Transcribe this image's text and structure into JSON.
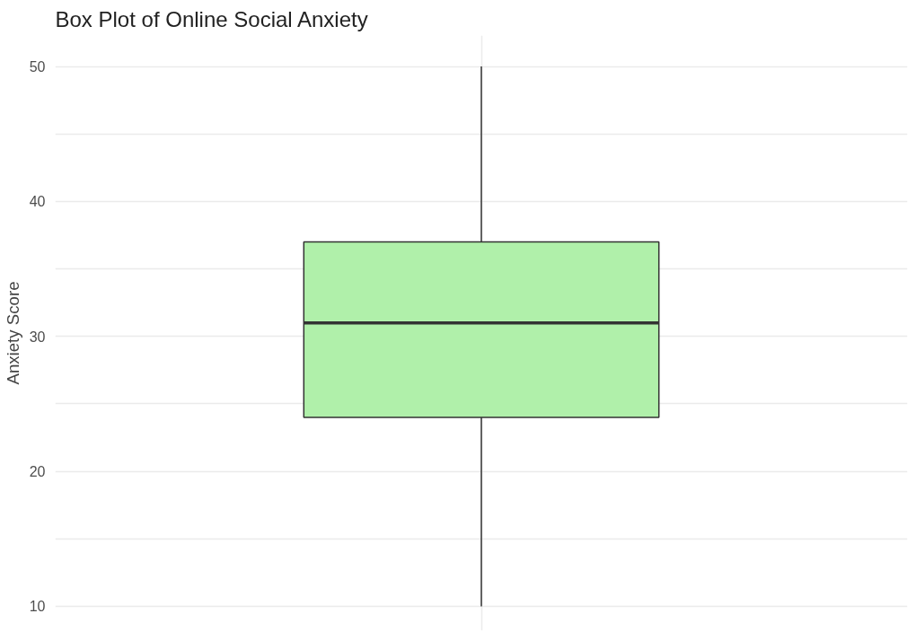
{
  "chart_data": {
    "type": "box",
    "title": "Box Plot of Online Social Anxiety",
    "ylabel": "Anxiety Score",
    "categories": [
      null
    ],
    "series": [
      {
        "color": "#b0f0aa",
        "boxes": [
          {
            "low": 10,
            "q1": 24,
            "median": 31,
            "q3": 37,
            "high": 50
          }
        ]
      }
    ],
    "ylim": [
      8.2,
      52.3
    ],
    "yticks": [
      10,
      {
        "value": 15,
        "label": null
      },
      20,
      {
        "value": 25,
        "label": null
      },
      30,
      {
        "value": 35,
        "label": null
      },
      40,
      {
        "value": 45,
        "label": null
      },
      50
    ],
    "grid": true,
    "tick_labels": "y"
  }
}
